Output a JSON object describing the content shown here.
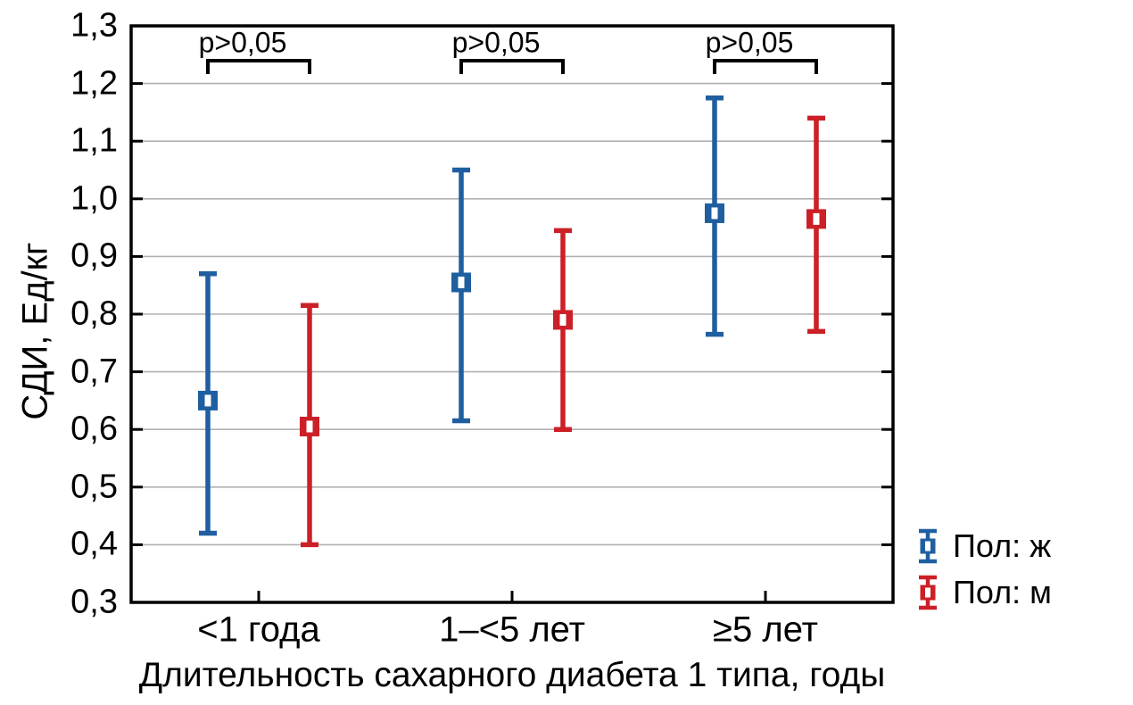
{
  "chart_data": {
    "type": "errorbar",
    "title": "",
    "xlabel": "Длительность сахарного диабета 1 типа, годы",
    "ylabel": "СДИ, Ед/кг",
    "ylim": [
      0.3,
      1.3
    ],
    "ytick_step": 0.1,
    "ytick_labels": [
      "0,3",
      "0,4",
      "0,5",
      "0,6",
      "0,7",
      "0,8",
      "0,9",
      "1,0",
      "1,1",
      "1,2",
      "1,3"
    ],
    "grid": true,
    "categories": [
      "<1 года",
      "1–<5 лет",
      "≥5 лет"
    ],
    "series": [
      {
        "name": "Пол: ж",
        "color": "#1f5fa0",
        "points": [
          {
            "center": 0.65,
            "low": 0.42,
            "high": 0.87
          },
          {
            "center": 0.855,
            "low": 0.615,
            "high": 1.05
          },
          {
            "center": 0.975,
            "low": 0.765,
            "high": 1.175
          }
        ]
      },
      {
        "name": "Пол: м",
        "color": "#cb2027",
        "points": [
          {
            "center": 0.605,
            "low": 0.4,
            "high": 0.815
          },
          {
            "center": 0.79,
            "low": 0.6,
            "high": 0.945
          },
          {
            "center": 0.965,
            "low": 0.77,
            "high": 1.14
          }
        ]
      }
    ],
    "annotations": [
      {
        "label": "p>0,05",
        "group": 0
      },
      {
        "label": "p>0,05",
        "group": 1
      },
      {
        "label": "p>0,05",
        "group": 2
      }
    ],
    "legend": {
      "position": "right-bottom"
    },
    "colors": {
      "grid": "#b1b1b1",
      "axis": "#000000",
      "background": "#ffffff"
    }
  }
}
